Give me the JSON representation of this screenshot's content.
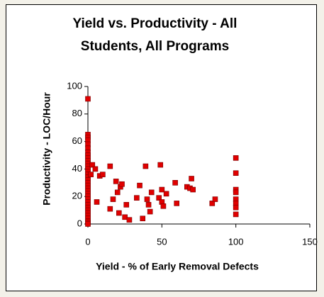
{
  "chart_data": {
    "type": "scatter",
    "title": "Yield vs. Productivity - All Students, All Programs",
    "x_label": "Yield - % of Early Removal Defects",
    "y_label": "Productivity - LOC/Hour",
    "color": "#e00000",
    "x": [
      0,
      0,
      0,
      0,
      0,
      0,
      0,
      0,
      0,
      0,
      0,
      0,
      0,
      0,
      0,
      0,
      0,
      0,
      0,
      0,
      0,
      0,
      0,
      0,
      0,
      0,
      0,
      0,
      0,
      0,
      0,
      0,
      0,
      0,
      2,
      3,
      5,
      6,
      8,
      10,
      15,
      15,
      17,
      19,
      20,
      21,
      22,
      23,
      25,
      26,
      28,
      33,
      35,
      37,
      39,
      40,
      41,
      42,
      43,
      48,
      49,
      50,
      50,
      51,
      53,
      59,
      60,
      67,
      69,
      70,
      71,
      84,
      86,
      100,
      100,
      100,
      100,
      100,
      100,
      100,
      100
    ],
    "values": [
      91,
      65,
      63,
      61,
      58,
      55,
      52,
      50,
      48,
      46,
      44,
      42,
      40,
      38,
      36,
      34,
      32,
      30,
      28,
      26,
      24,
      22,
      20,
      18,
      16,
      14,
      12,
      10,
      8,
      6,
      4,
      2,
      1,
      0,
      36,
      43,
      40,
      16,
      35,
      36,
      42,
      11,
      18,
      31,
      23,
      8,
      27,
      29,
      5,
      14,
      3,
      19,
      28,
      4,
      42,
      18,
      14,
      9,
      23,
      19,
      43,
      25,
      16,
      13,
      22,
      30,
      15,
      27,
      26,
      33,
      25,
      15,
      18,
      48,
      37,
      25,
      23,
      18,
      15,
      12,
      7
    ],
    "xlim": [
      0,
      150
    ],
    "xticks": [
      0,
      50,
      100,
      150
    ],
    "ylim": [
      0,
      100
    ],
    "yticks": [
      0,
      20,
      40,
      60,
      80,
      100
    ]
  }
}
